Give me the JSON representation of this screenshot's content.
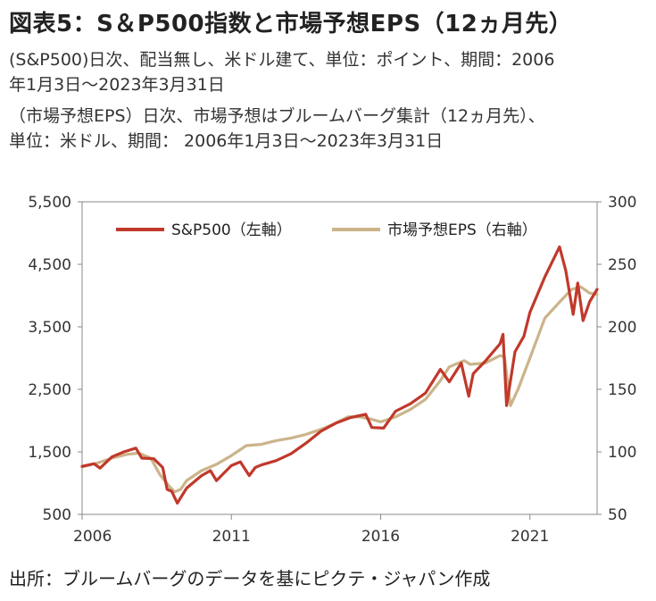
{
  "header": {
    "title": "図表5：S＆P500指数と市場予想EPS（12ヵ月先）",
    "notes": [
      "(S&P500)日次、配当無し、米ドル建て、単位：ポイント、期間：2006",
      "年1月3日～2023年3月31日",
      "（市場予想EPS）日次、市場予想はブルームバーグ集計（12ヵ月先）、",
      "単位：米ドル、期間： 2006年1月3日～2023年3月31日"
    ]
  },
  "footer": {
    "source": "出所：ブルームバーグのデータを基にピクテ・ジャパン作成"
  },
  "colors": {
    "sp500": "#c0392b",
    "eps": "#cbb48a",
    "axis": "#888888"
  },
  "chart_data": {
    "type": "line",
    "xlim": [
      2006.0,
      2023.25
    ],
    "x_ticks": [
      2006,
      2011,
      2016,
      2021
    ],
    "x_tick_labels": [
      "2006",
      "2011",
      "2016",
      "2021"
    ],
    "y_left": {
      "lim": [
        500,
        5500
      ],
      "ticks": [
        500,
        1500,
        2500,
        3500,
        4500,
        5500
      ],
      "tick_labels": [
        "500",
        "1,500",
        "2,500",
        "3,500",
        "4,500",
        "5,500"
      ]
    },
    "y_right": {
      "lim": [
        50,
        300
      ],
      "ticks": [
        50,
        100,
        150,
        200,
        250,
        300
      ],
      "tick_labels": [
        "50",
        "100",
        "150",
        "200",
        "250",
        "300"
      ]
    },
    "grid": false,
    "legend": "top",
    "series": [
      {
        "name": "S&P500（左軸）",
        "axis": "left",
        "x": [
          2006.0,
          2006.4,
          2006.6,
          2007.0,
          2007.4,
          2007.8,
          2008.0,
          2008.4,
          2008.7,
          2008.85,
          2009.0,
          2009.19,
          2009.5,
          2010.0,
          2010.3,
          2010.5,
          2011.0,
          2011.3,
          2011.6,
          2011.8,
          2012.0,
          2012.5,
          2013.0,
          2013.5,
          2014.0,
          2014.5,
          2015.0,
          2015.5,
          2015.7,
          2016.1,
          2016.5,
          2017.0,
          2017.5,
          2018.0,
          2018.3,
          2018.7,
          2018.95,
          2019.1,
          2019.5,
          2020.0,
          2020.1,
          2020.22,
          2020.5,
          2020.8,
          2021.0,
          2021.5,
          2021.99,
          2022.2,
          2022.45,
          2022.6,
          2022.78,
          2023.0,
          2023.25
        ],
        "y": [
          1268,
          1310,
          1240,
          1420,
          1500,
          1560,
          1400,
          1390,
          1250,
          900,
          870,
          680,
          920,
          1120,
          1200,
          1040,
          1280,
          1340,
          1120,
          1250,
          1290,
          1360,
          1470,
          1640,
          1830,
          1960,
          2050,
          2100,
          1890,
          1880,
          2150,
          2270,
          2440,
          2820,
          2620,
          2920,
          2390,
          2750,
          2950,
          3230,
          3380,
          2240,
          3100,
          3350,
          3730,
          4300,
          4780,
          4400,
          3700,
          4200,
          3600,
          3900,
          4100
        ]
      },
      {
        "name": "市場予想EPS（右軸）",
        "axis": "right",
        "x": [
          2006.0,
          2006.5,
          2007.0,
          2007.5,
          2007.9,
          2008.3,
          2008.6,
          2008.9,
          2009.1,
          2009.3,
          2009.5,
          2010.0,
          2010.5,
          2011.0,
          2011.5,
          2012.0,
          2012.5,
          2013.0,
          2013.5,
          2014.0,
          2014.5,
          2014.9,
          2015.3,
          2015.7,
          2016.0,
          2016.5,
          2017.0,
          2017.5,
          2018.0,
          2018.3,
          2018.8,
          2019.0,
          2019.5,
          2020.0,
          2020.15,
          2020.35,
          2020.6,
          2021.0,
          2021.5,
          2022.0,
          2022.4,
          2022.7,
          2023.0,
          2023.25
        ],
        "y": [
          88,
          91,
          95,
          98,
          99,
          95,
          82,
          73,
          68,
          70,
          77,
          85,
          90,
          97,
          105,
          106,
          109,
          111,
          114,
          118,
          123,
          128,
          128,
          126,
          124,
          128,
          134,
          142,
          157,
          168,
          173,
          170,
          171,
          177,
          176,
          137,
          150,
          175,
          207,
          220,
          230,
          232,
          227,
          226
        ]
      }
    ]
  }
}
